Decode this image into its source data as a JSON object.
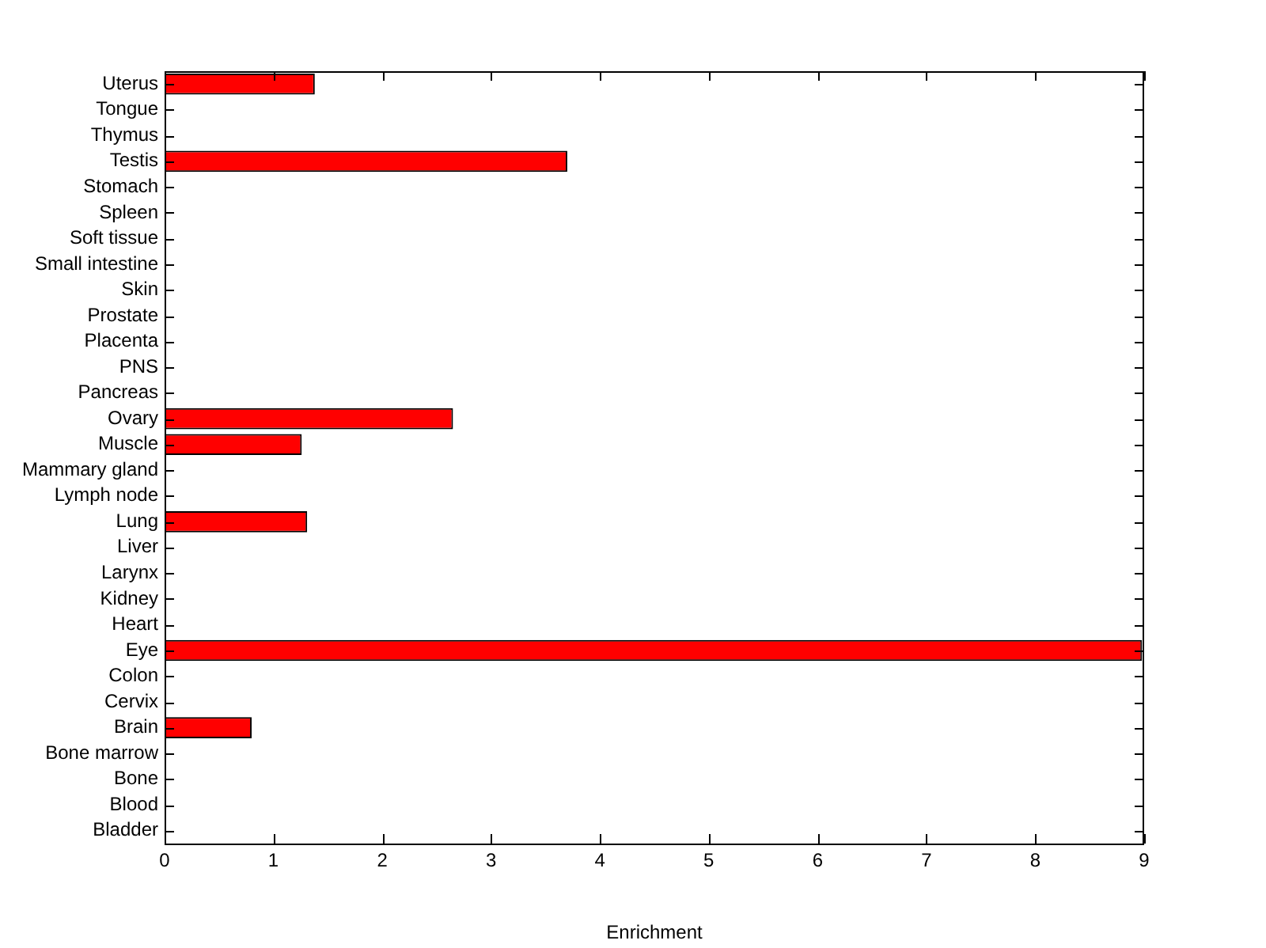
{
  "chart_data": {
    "type": "bar",
    "orientation": "horizontal",
    "xlabel": "Enrichment",
    "categories": [
      "Uterus",
      "Tongue",
      "Thymus",
      "Testis",
      "Stomach",
      "Spleen",
      "Soft tissue",
      "Small intestine",
      "Skin",
      "Prostate",
      "Placenta",
      "PNS",
      "Pancreas",
      "Ovary",
      "Muscle",
      "Mammary gland",
      "Lymph node",
      "Lung",
      "Liver",
      "Larynx",
      "Kidney",
      "Heart",
      "Eye",
      "Colon",
      "Cervix",
      "Brain",
      "Bone marrow",
      "Bone",
      "Blood",
      "Bladder"
    ],
    "values": [
      1.38,
      0,
      0,
      3.7,
      0,
      0,
      0,
      0,
      0,
      0,
      0,
      0,
      0,
      2.65,
      1.26,
      0,
      0,
      1.31,
      0,
      0,
      0,
      0,
      8.98,
      0,
      0,
      0.8,
      0,
      0,
      0,
      0
    ],
    "color": "#ff0000",
    "xlim": [
      0,
      9
    ],
    "xticks": [
      0,
      1,
      2,
      3,
      4,
      5,
      6,
      7,
      8,
      9
    ],
    "grid": false,
    "legend": false
  }
}
